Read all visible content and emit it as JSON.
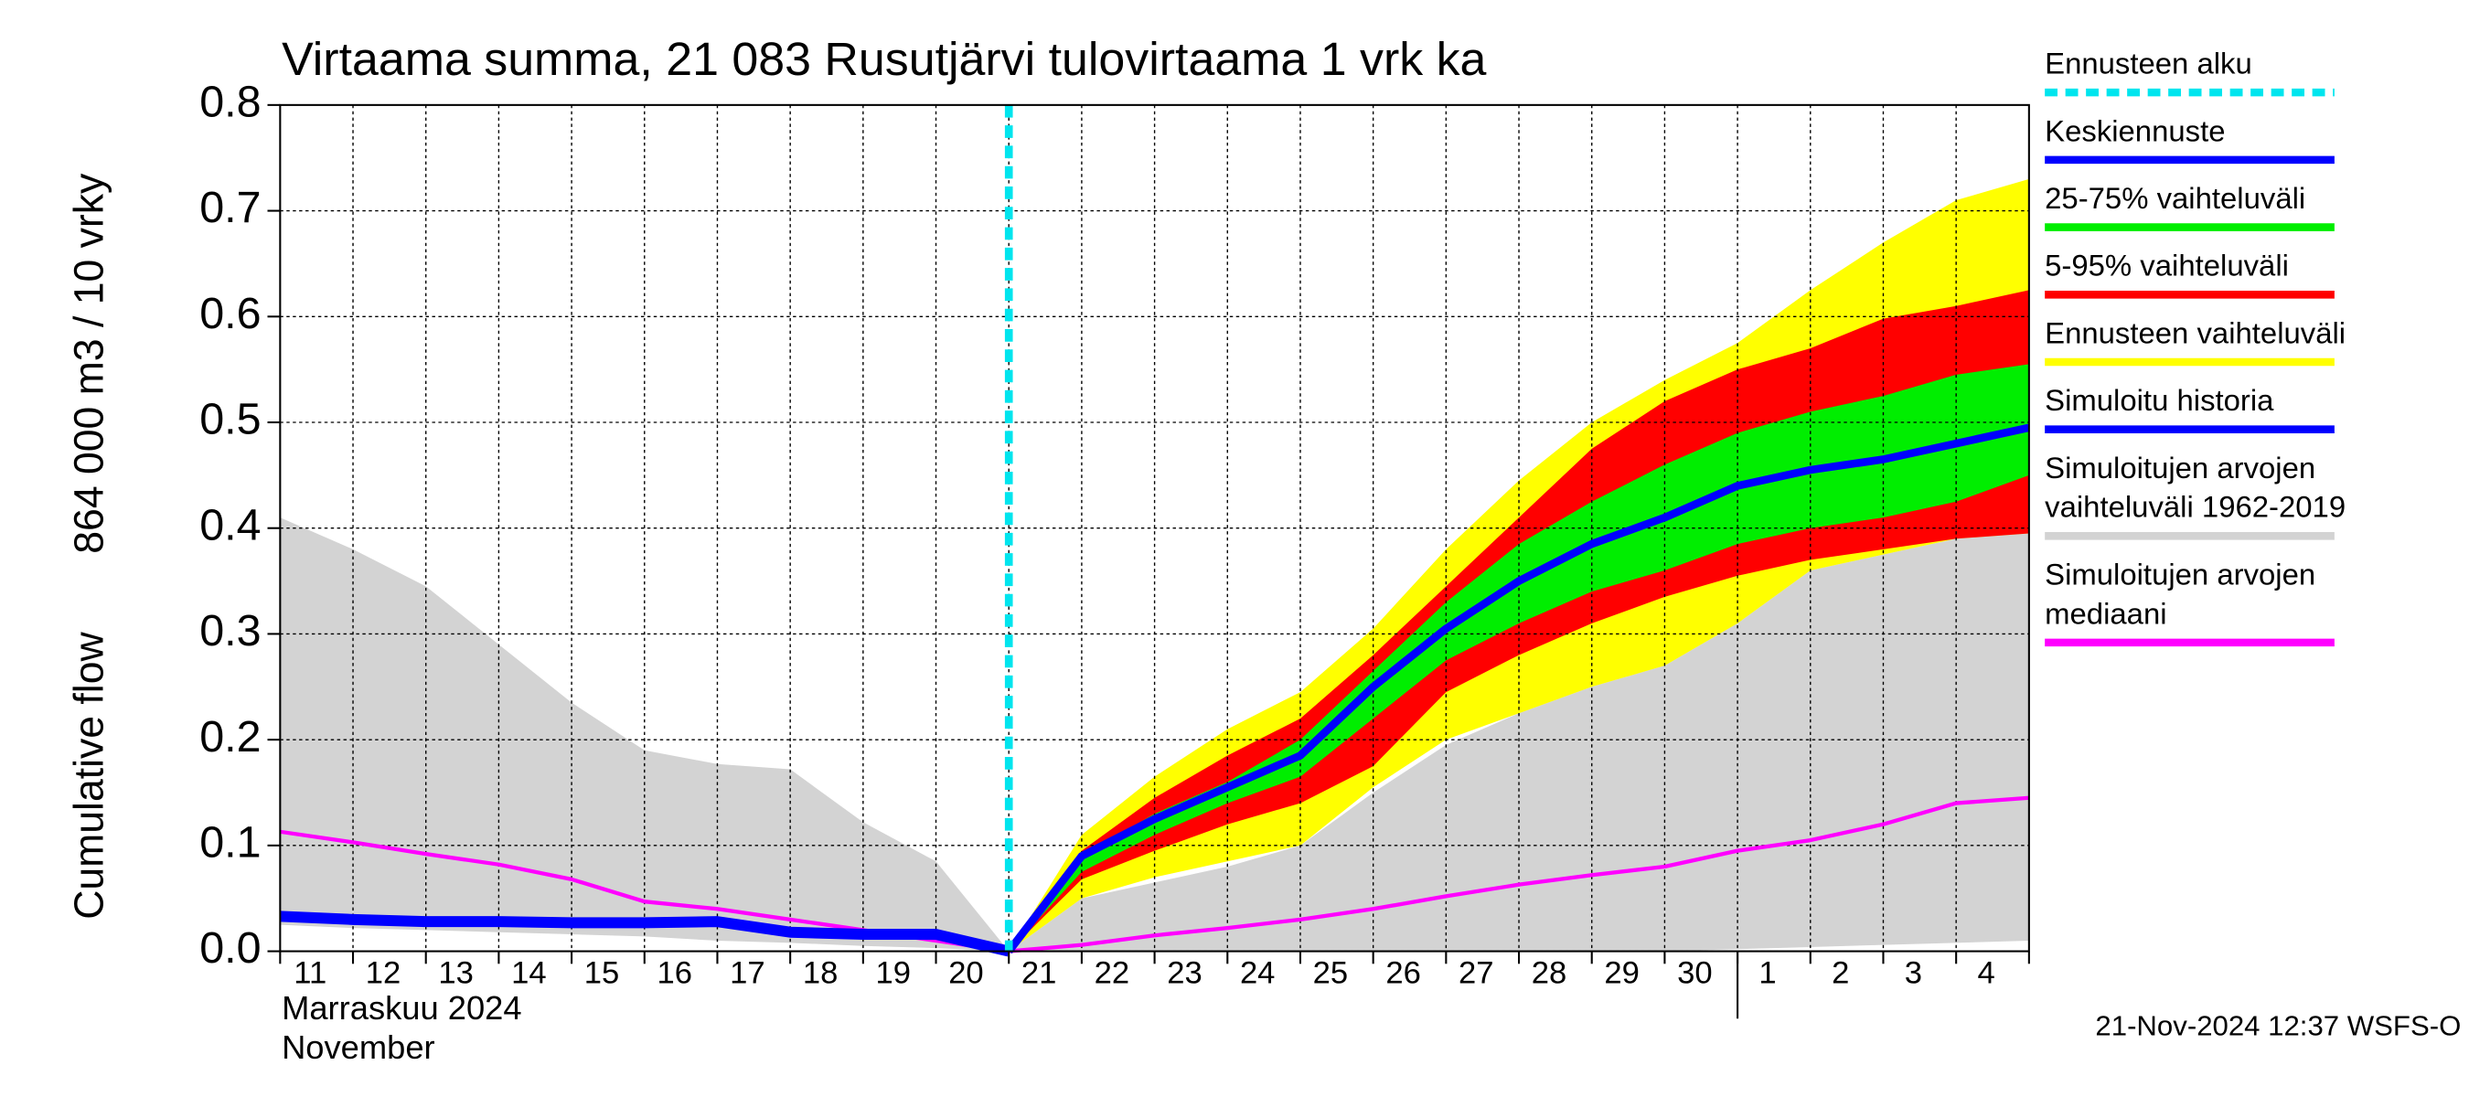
{
  "chart_data": {
    "type": "band-forecast",
    "title": "Virtaama summa, 21 083 Rusutjärvi tulovirtaama 1 vrk ka",
    "ylabel": "Cumulative flow",
    "ylabel_units": "864 000 m3 / 10 vrky",
    "month_label": "Marraskuu 2024",
    "month_label_en": "November",
    "timestamp": "21-Nov-2024 12:37 WSFS-O",
    "categories": [
      "11",
      "12",
      "13",
      "14",
      "15",
      "16",
      "17",
      "18",
      "19",
      "20",
      "21",
      "22",
      "23",
      "24",
      "25",
      "26",
      "27",
      "28",
      "29",
      "30",
      "1",
      "2",
      "3",
      "4",
      null
    ],
    "forecast_start": "21",
    "month_start": "1",
    "ylim": [
      0,
      0.8
    ],
    "yticks": [
      {
        "value": 0,
        "label": "0.0"
      },
      {
        "value": 0.1,
        "label": "0.1"
      },
      {
        "value": 0.2,
        "label": "0.2"
      },
      {
        "value": 0.3,
        "label": "0.3"
      },
      {
        "value": 0.4,
        "label": "0.4"
      },
      {
        "value": 0.5,
        "label": "0.5"
      },
      {
        "value": 0.6,
        "label": "0.6"
      },
      {
        "value": 0.7,
        "label": "0.7"
      },
      {
        "value": 0.8,
        "label": "0.8"
      }
    ],
    "grid": true,
    "series": [
      {
        "name": "Ennusteen alku",
        "kind": "marker",
        "color": "#00e5ee"
      },
      {
        "name": [
          "Simuloitujen arvojen",
          "vaihteluväli 1962-2019"
        ],
        "kind": "band",
        "color": "#d3d3d3",
        "upper": [
          0.41,
          0.38,
          0.345,
          0.29,
          0.235,
          0.19,
          0.177,
          0.172,
          0.122,
          0.085,
          0,
          0.05,
          0.065,
          0.08,
          0.1,
          0.15,
          0.195,
          0.225,
          0.25,
          0.27,
          0.31,
          0.36,
          0.375,
          0.39,
          0.4
        ],
        "lower": [
          0.025,
          0.022,
          0.02,
          0.018,
          0.016,
          0.014,
          0.01,
          0.008,
          0.005,
          0.003,
          0,
          0,
          0,
          0,
          0,
          0,
          0,
          0,
          0,
          0,
          0.002,
          0.004,
          0.006,
          0.008,
          0.01
        ]
      },
      {
        "name": "Ennusteen vaihteluväli",
        "kind": "band",
        "color": "#ffff00",
        "upper": [
          null,
          null,
          null,
          null,
          null,
          null,
          null,
          null,
          null,
          null,
          0,
          0.11,
          0.165,
          0.21,
          0.245,
          0.305,
          0.38,
          0.445,
          0.5,
          0.54,
          0.575,
          0.625,
          0.67,
          0.71,
          0.73
        ],
        "lower": [
          null,
          null,
          null,
          null,
          null,
          null,
          null,
          null,
          null,
          null,
          0,
          0.05,
          0.07,
          0.085,
          0.1,
          0.155,
          0.2,
          0.225,
          0.25,
          0.27,
          0.31,
          0.36,
          0.375,
          0.39,
          0.395
        ]
      },
      {
        "name": "5-95% vaihteluväli",
        "kind": "band",
        "color": "#ff0000",
        "upper": [
          null,
          null,
          null,
          null,
          null,
          null,
          null,
          null,
          null,
          null,
          0,
          0.095,
          0.145,
          0.185,
          0.22,
          0.28,
          0.345,
          0.41,
          0.475,
          0.52,
          0.55,
          0.57,
          0.598,
          0.61,
          0.625
        ],
        "lower": [
          null,
          null,
          null,
          null,
          null,
          null,
          null,
          null,
          null,
          null,
          0,
          0.068,
          0.095,
          0.12,
          0.14,
          0.175,
          0.245,
          0.28,
          0.31,
          0.335,
          0.355,
          0.37,
          0.38,
          0.39,
          0.395
        ]
      },
      {
        "name": "25-75% vaihteluväli",
        "kind": "band",
        "color": "#00ee00",
        "upper": [
          null,
          null,
          null,
          null,
          null,
          null,
          null,
          null,
          null,
          null,
          0,
          0.09,
          0.13,
          0.16,
          0.2,
          0.265,
          0.33,
          0.385,
          0.425,
          0.46,
          0.49,
          0.51,
          0.525,
          0.545,
          0.555
        ],
        "lower": [
          null,
          null,
          null,
          null,
          null,
          null,
          null,
          null,
          null,
          null,
          0,
          0.075,
          0.11,
          0.14,
          0.165,
          0.22,
          0.275,
          0.31,
          0.34,
          0.36,
          0.385,
          0.4,
          0.41,
          0.425,
          0.45
        ]
      },
      {
        "name": [
          "Simuloitujen arvojen",
          "mediaani"
        ],
        "kind": "line",
        "color": "#ff00ff",
        "width": 2.5,
        "values": [
          0.113,
          0.103,
          0.092,
          0.082,
          0.068,
          0.047,
          0.04,
          0.03,
          0.02,
          0.01,
          0,
          0.006,
          0.015,
          0.022,
          0.03,
          0.04,
          0.052,
          0.063,
          0.072,
          0.08,
          0.095,
          0.105,
          0.12,
          0.14,
          0.145
        ]
      },
      {
        "name": "Simuloitu historia",
        "kind": "line",
        "color": "#0000ff",
        "width": 7,
        "values": [
          0.033,
          0.03,
          0.028,
          0.028,
          0.027,
          0.027,
          0.028,
          0.018,
          0.016,
          0.016,
          0,
          null,
          null,
          null,
          null,
          null,
          null,
          null,
          null,
          null,
          null,
          null,
          null,
          null,
          null
        ]
      },
      {
        "name": "Keskiennuste",
        "kind": "line",
        "color": "#0000ff",
        "width": 5,
        "values": [
          null,
          null,
          null,
          null,
          null,
          null,
          null,
          null,
          null,
          null,
          0,
          0.09,
          0.125,
          0.155,
          0.185,
          0.25,
          0.305,
          0.35,
          0.385,
          0.41,
          0.44,
          0.455,
          0.465,
          0.48,
          0.495
        ]
      }
    ],
    "legend_order": [
      "Ennusteen alku",
      "Keskiennuste",
      "25-75% vaihteluväli",
      "5-95% vaihteluväli",
      "Ennusteen vaihteluväli",
      "Simuloitu historia"
    ]
  }
}
